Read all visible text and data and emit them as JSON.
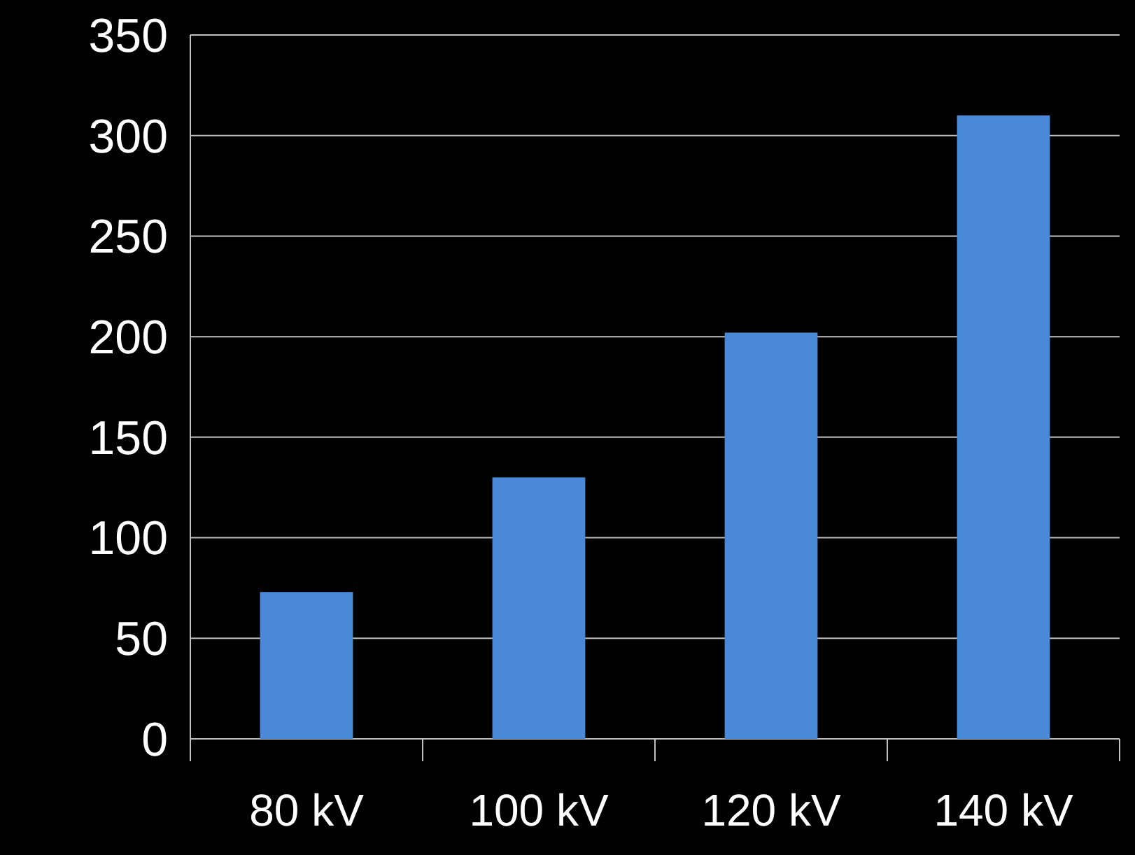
{
  "chart_data": {
    "type": "bar",
    "categories": [
      "80 kV",
      "100 kV",
      "120 kV",
      "140 kV"
    ],
    "values": [
      73,
      130,
      202,
      310
    ],
    "color": "#4a88d8",
    "ylim": [
      0,
      350
    ],
    "yticks": [
      0,
      50,
      100,
      150,
      200,
      250,
      300,
      350
    ],
    "grid": "y"
  }
}
